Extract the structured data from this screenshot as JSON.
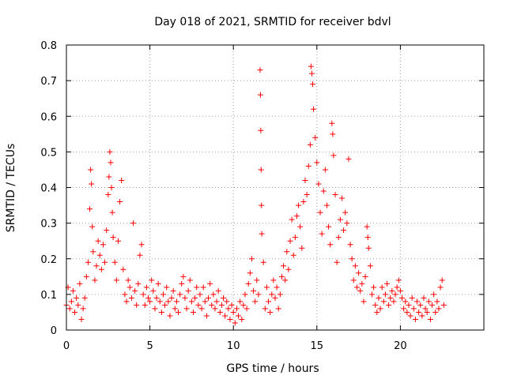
{
  "chart_data": {
    "type": "scatter",
    "title": "Day 018 of 2021, SRMTID for receiver bdvl",
    "xlabel": "GPS time / hours",
    "ylabel": "SRMTID / TECUs",
    "xlim": [
      0,
      25
    ],
    "ylim": [
      0,
      0.8
    ],
    "x_ticks": [
      0,
      5,
      10,
      15,
      20
    ],
    "y_ticks": [
      0,
      0.1,
      0.2,
      0.3,
      0.4,
      0.5,
      0.6,
      0.7,
      0.8
    ],
    "grid": true,
    "marker": "+",
    "color": "#ff0000",
    "series": [
      {
        "name": "SRMTID",
        "points": [
          [
            0.0,
            0.07
          ],
          [
            0.1,
            0.12
          ],
          [
            0.2,
            0.06
          ],
          [
            0.3,
            0.08
          ],
          [
            0.4,
            0.11
          ],
          [
            0.5,
            0.05
          ],
          [
            0.6,
            0.09
          ],
          [
            0.7,
            0.07
          ],
          [
            0.8,
            0.13
          ],
          [
            0.9,
            0.03
          ],
          [
            1.0,
            0.06
          ],
          [
            1.1,
            0.09
          ],
          [
            1.2,
            0.15
          ],
          [
            1.3,
            0.19
          ],
          [
            1.4,
            0.34
          ],
          [
            1.45,
            0.45
          ],
          [
            1.5,
            0.41
          ],
          [
            1.55,
            0.29
          ],
          [
            1.6,
            0.22
          ],
          [
            1.7,
            0.14
          ],
          [
            1.8,
            0.18
          ],
          [
            1.9,
            0.25
          ],
          [
            2.0,
            0.21
          ],
          [
            2.1,
            0.17
          ],
          [
            2.2,
            0.24
          ],
          [
            2.3,
            0.19
          ],
          [
            2.4,
            0.28
          ],
          [
            2.5,
            0.38
          ],
          [
            2.55,
            0.43
          ],
          [
            2.6,
            0.5
          ],
          [
            2.65,
            0.47
          ],
          [
            2.7,
            0.4
          ],
          [
            2.75,
            0.33
          ],
          [
            2.8,
            0.26
          ],
          [
            2.9,
            0.19
          ],
          [
            3.0,
            0.14
          ],
          [
            3.1,
            0.25
          ],
          [
            3.2,
            0.36
          ],
          [
            3.3,
            0.42
          ],
          [
            3.4,
            0.17
          ],
          [
            3.5,
            0.1
          ],
          [
            3.6,
            0.08
          ],
          [
            3.7,
            0.14
          ],
          [
            3.8,
            0.12
          ],
          [
            3.9,
            0.09
          ],
          [
            4.0,
            0.3
          ],
          [
            4.1,
            0.11
          ],
          [
            4.2,
            0.07
          ],
          [
            4.3,
            0.13
          ],
          [
            4.4,
            0.21
          ],
          [
            4.5,
            0.24
          ],
          [
            4.6,
            0.1
          ],
          [
            4.7,
            0.07
          ],
          [
            4.8,
            0.12
          ],
          [
            4.9,
            0.09
          ],
          [
            5.0,
            0.08
          ],
          [
            5.1,
            0.14
          ],
          [
            5.2,
            0.11
          ],
          [
            5.3,
            0.06
          ],
          [
            5.4,
            0.09
          ],
          [
            5.5,
            0.13
          ],
          [
            5.6,
            0.08
          ],
          [
            5.7,
            0.05
          ],
          [
            5.8,
            0.1
          ],
          [
            5.9,
            0.07
          ],
          [
            6.0,
            0.12
          ],
          [
            6.1,
            0.08
          ],
          [
            6.2,
            0.04
          ],
          [
            6.3,
            0.09
          ],
          [
            6.4,
            0.11
          ],
          [
            6.5,
            0.06
          ],
          [
            6.6,
            0.08
          ],
          [
            6.7,
            0.05
          ],
          [
            6.8,
            0.1
          ],
          [
            6.9,
            0.13
          ],
          [
            7.0,
            0.15
          ],
          [
            7.1,
            0.09
          ],
          [
            7.2,
            0.06
          ],
          [
            7.3,
            0.11
          ],
          [
            7.4,
            0.14
          ],
          [
            7.5,
            0.08
          ],
          [
            7.6,
            0.05
          ],
          [
            7.7,
            0.09
          ],
          [
            7.8,
            0.12
          ],
          [
            7.9,
            0.07
          ],
          [
            8.0,
            0.1
          ],
          [
            8.1,
            0.06
          ],
          [
            8.2,
            0.12
          ],
          [
            8.3,
            0.08
          ],
          [
            8.4,
            0.04
          ],
          [
            8.5,
            0.09
          ],
          [
            8.6,
            0.13
          ],
          [
            8.7,
            0.07
          ],
          [
            8.8,
            0.1
          ],
          [
            8.9,
            0.06
          ],
          [
            9.0,
            0.08
          ],
          [
            9.1,
            0.11
          ],
          [
            9.2,
            0.05
          ],
          [
            9.3,
            0.07
          ],
          [
            9.4,
            0.09
          ],
          [
            9.5,
            0.04
          ],
          [
            9.6,
            0.08
          ],
          [
            9.7,
            0.06
          ],
          [
            9.8,
            0.03
          ],
          [
            9.9,
            0.07
          ],
          [
            10.0,
            0.05
          ],
          [
            10.1,
            0.02
          ],
          [
            10.2,
            0.06
          ],
          [
            10.3,
            0.04
          ],
          [
            10.4,
            0.08
          ],
          [
            10.5,
            0.03
          ],
          [
            10.6,
            0.07
          ],
          [
            10.7,
            0.1
          ],
          [
            10.8,
            0.06
          ],
          [
            10.9,
            0.13
          ],
          [
            11.0,
            0.16
          ],
          [
            11.1,
            0.2
          ],
          [
            11.2,
            0.11
          ],
          [
            11.3,
            0.08
          ],
          [
            11.4,
            0.14
          ],
          [
            11.5,
            0.1
          ],
          [
            11.6,
            0.73
          ],
          [
            11.62,
            0.66
          ],
          [
            11.64,
            0.56
          ],
          [
            11.66,
            0.45
          ],
          [
            11.68,
            0.35
          ],
          [
            11.7,
            0.27
          ],
          [
            11.8,
            0.19
          ],
          [
            11.9,
            0.06
          ],
          [
            12.0,
            0.12
          ],
          [
            12.1,
            0.08
          ],
          [
            12.2,
            0.05
          ],
          [
            12.3,
            0.1
          ],
          [
            12.4,
            0.14
          ],
          [
            12.5,
            0.09
          ],
          [
            12.6,
            0.12
          ],
          [
            12.7,
            0.06
          ],
          [
            12.8,
            0.1
          ],
          [
            12.9,
            0.15
          ],
          [
            13.0,
            0.18
          ],
          [
            13.1,
            0.14
          ],
          [
            13.2,
            0.22
          ],
          [
            13.3,
            0.17
          ],
          [
            13.4,
            0.25
          ],
          [
            13.5,
            0.31
          ],
          [
            13.6,
            0.21
          ],
          [
            13.7,
            0.26
          ],
          [
            13.8,
            0.32
          ],
          [
            13.9,
            0.35
          ],
          [
            14.0,
            0.29
          ],
          [
            14.1,
            0.23
          ],
          [
            14.2,
            0.36
          ],
          [
            14.3,
            0.42
          ],
          [
            14.4,
            0.38
          ],
          [
            14.5,
            0.46
          ],
          [
            14.6,
            0.52
          ],
          [
            14.65,
            0.74
          ],
          [
            14.7,
            0.72
          ],
          [
            14.75,
            0.69
          ],
          [
            14.8,
            0.62
          ],
          [
            14.9,
            0.54
          ],
          [
            15.0,
            0.47
          ],
          [
            15.1,
            0.41
          ],
          [
            15.2,
            0.33
          ],
          [
            15.3,
            0.27
          ],
          [
            15.4,
            0.39
          ],
          [
            15.5,
            0.45
          ],
          [
            15.6,
            0.35
          ],
          [
            15.7,
            0.29
          ],
          [
            15.8,
            0.24
          ],
          [
            15.9,
            0.58
          ],
          [
            15.95,
            0.55
          ],
          [
            16.0,
            0.49
          ],
          [
            16.1,
            0.38
          ],
          [
            16.2,
            0.19
          ],
          [
            16.3,
            0.26
          ],
          [
            16.4,
            0.31
          ],
          [
            16.5,
            0.37
          ],
          [
            16.6,
            0.28
          ],
          [
            16.7,
            0.33
          ],
          [
            16.8,
            0.3
          ],
          [
            16.9,
            0.48
          ],
          [
            17.0,
            0.24
          ],
          [
            17.1,
            0.2
          ],
          [
            17.2,
            0.14
          ],
          [
            17.3,
            0.18
          ],
          [
            17.4,
            0.12
          ],
          [
            17.5,
            0.16
          ],
          [
            17.6,
            0.11
          ],
          [
            17.7,
            0.13
          ],
          [
            17.8,
            0.08
          ],
          [
            17.9,
            0.15
          ],
          [
            18.0,
            0.29
          ],
          [
            18.05,
            0.26
          ],
          [
            18.1,
            0.23
          ],
          [
            18.2,
            0.18
          ],
          [
            18.3,
            0.1
          ],
          [
            18.4,
            0.12
          ],
          [
            18.5,
            0.07
          ],
          [
            18.6,
            0.05
          ],
          [
            18.7,
            0.09
          ],
          [
            18.8,
            0.06
          ],
          [
            18.9,
            0.12
          ],
          [
            19.0,
            0.08
          ],
          [
            19.1,
            0.1
          ],
          [
            19.2,
            0.13
          ],
          [
            19.3,
            0.07
          ],
          [
            19.4,
            0.09
          ],
          [
            19.5,
            0.11
          ],
          [
            19.6,
            0.08
          ],
          [
            19.7,
            0.1
          ],
          [
            19.8,
            0.12
          ],
          [
            19.9,
            0.14
          ],
          [
            20.0,
            0.11
          ],
          [
            20.1,
            0.09
          ],
          [
            20.2,
            0.06
          ],
          [
            20.3,
            0.08
          ],
          [
            20.4,
            0.05
          ],
          [
            20.5,
            0.07
          ],
          [
            20.6,
            0.04
          ],
          [
            20.7,
            0.09
          ],
          [
            20.8,
            0.06
          ],
          [
            20.9,
            0.03
          ],
          [
            21.0,
            0.08
          ],
          [
            21.1,
            0.05
          ],
          [
            21.2,
            0.07
          ],
          [
            21.3,
            0.04
          ],
          [
            21.4,
            0.09
          ],
          [
            21.5,
            0.06
          ],
          [
            21.6,
            0.05
          ],
          [
            21.7,
            0.08
          ],
          [
            21.8,
            0.03
          ],
          [
            21.9,
            0.07
          ],
          [
            22.0,
            0.1
          ],
          [
            22.1,
            0.05
          ],
          [
            22.2,
            0.08
          ],
          [
            22.3,
            0.06
          ],
          [
            22.4,
            0.12
          ],
          [
            22.5,
            0.14
          ],
          [
            22.6,
            0.07
          ]
        ]
      }
    ]
  }
}
